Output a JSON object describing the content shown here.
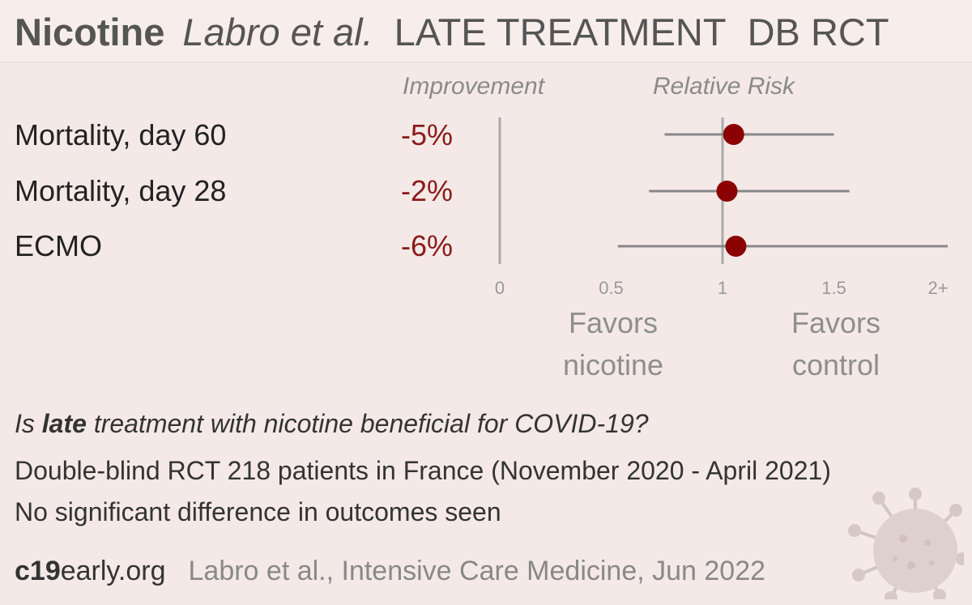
{
  "header": {
    "treatment": "Nicotine",
    "author": "Labro et al.",
    "stage": "LATE TREATMENT",
    "design": "DB RCT"
  },
  "columns": {
    "improvement": "Improvement",
    "relative_risk": "Relative Risk"
  },
  "chart_data": {
    "type": "forest",
    "x_scale": "nonlinear, 2+ denotes values 2 and above",
    "xlim": [
      0,
      2
    ],
    "ticks": [
      "0",
      "0.5",
      "1",
      "1.5",
      "2+"
    ],
    "reference_line": 1,
    "rows": [
      {
        "outcome": "Mortality, day 60",
        "improvement": "-5%",
        "rr": 1.05,
        "ci_low": 0.74,
        "ci_high": 1.5
      },
      {
        "outcome": "Mortality, day 28",
        "improvement": "-2%",
        "rr": 1.02,
        "ci_low": 0.67,
        "ci_high": 1.57
      },
      {
        "outcome": "ECMO",
        "improvement": "-6%",
        "rr": 1.06,
        "ci_low": 0.53,
        "ci_high": 2.1
      }
    ],
    "favors_left": "Favors nicotine",
    "favors_right": "Favors control",
    "colors": {
      "point": "#8b0000",
      "ci": "#888888",
      "axis": "#aaaaaa"
    }
  },
  "favors": {
    "left_line1": "Favors",
    "left_line2": "nicotine",
    "right_line1": "Favors",
    "right_line2": "control"
  },
  "summary": {
    "question_pre": "Is ",
    "question_bold": "late",
    "question_post": " treatment with nicotine beneficial for COVID-19?",
    "design": "Double-blind RCT 218 patients in France (November 2020 - April 2021)",
    "result": "No significant difference in outcomes seen"
  },
  "footer": {
    "site_bold": "c19",
    "site_rest": "early.org",
    "citation": "Labro et al., Intensive Care Medicine, Jun 2022"
  },
  "icons": {
    "virus": "coronavirus-icon"
  }
}
